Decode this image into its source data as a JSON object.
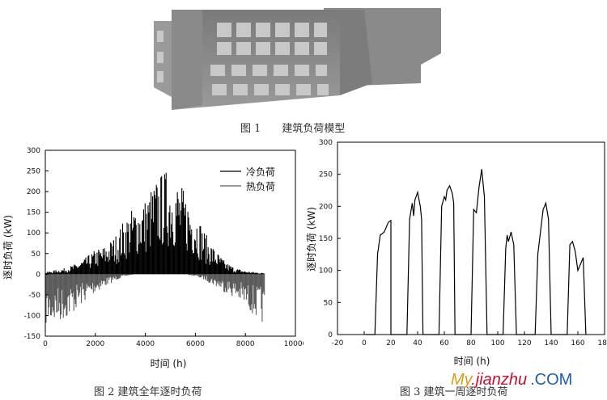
{
  "figure1": {
    "caption": "图 1　　建筑负荷模型"
  },
  "figure2": {
    "caption": "图 2 建筑全年逐时负荷"
  },
  "figure3": {
    "caption": "图 3 建筑一周逐时负荷"
  },
  "watermark": {
    "my": "My",
    "jianzhu": ".jianzhu",
    "com": ".COM"
  },
  "chart_data": [
    {
      "type": "bar",
      "xlabel": "时间 (h)",
      "ylabel": "逐时负荷 (kW)",
      "xlim": [
        0,
        10000
      ],
      "ylim": [
        -150,
        300
      ],
      "xticks": [
        "0",
        "2000",
        "4000",
        "6000",
        "8000",
        "10000"
      ],
      "yticks": [
        "300",
        "250",
        "200",
        "150",
        "100",
        "50",
        "0",
        "-50",
        "-100",
        "-150"
      ],
      "legend_position": "top-right",
      "series": [
        {
          "name": "冷负荷",
          "color": "#000000",
          "x": [
            0,
            400,
            800,
            1200,
            1600,
            2000,
            2400,
            2800,
            3200,
            3600,
            4000,
            4400,
            4800,
            5200,
            5600,
            6000,
            6400,
            6800,
            7200,
            7600,
            8000,
            8400,
            8760
          ],
          "values": [
            5,
            10,
            15,
            25,
            40,
            60,
            70,
            95,
            140,
            170,
            185,
            230,
            255,
            240,
            200,
            160,
            100,
            60,
            30,
            15,
            8,
            5,
            3
          ]
        },
        {
          "name": "热负荷",
          "color": "#5a5a5a",
          "x": [
            0,
            400,
            800,
            1200,
            1600,
            2000,
            2400,
            2800,
            3200,
            3600,
            4000,
            4400,
            4800,
            5200,
            5600,
            6000,
            6400,
            6800,
            7200,
            7600,
            8000,
            8400,
            8760
          ],
          "values": [
            -125,
            -120,
            -110,
            -90,
            -65,
            -45,
            -30,
            -15,
            -5,
            0,
            0,
            0,
            0,
            0,
            0,
            -5,
            -15,
            -30,
            -45,
            -60,
            -80,
            -105,
            -125
          ]
        }
      ]
    },
    {
      "type": "line",
      "xlabel": "时间 (h)",
      "ylabel": "逐时负荷 (kW)",
      "xlim": [
        -20,
        180
      ],
      "ylim": [
        0,
        300
      ],
      "xticks": [
        "-20",
        "0",
        "20",
        "40",
        "60",
        "80",
        "100",
        "120",
        "140",
        "160",
        "180"
      ],
      "yticks": [
        "0",
        "50",
        "100",
        "150",
        "200",
        "250",
        "300"
      ],
      "series": [
        {
          "color": "#000000",
          "x": [
            1,
            8,
            10,
            12,
            15,
            18,
            20,
            20,
            32,
            34,
            36,
            37,
            38,
            40,
            42,
            43,
            44,
            44,
            56,
            58,
            60,
            61,
            62,
            64,
            66,
            67,
            68,
            68,
            80,
            82,
            84,
            86,
            88,
            90,
            92,
            92,
            104,
            106,
            107,
            108,
            110,
            112,
            114,
            116,
            116,
            128,
            130,
            132,
            134,
            136,
            138,
            140,
            140,
            152,
            154,
            156,
            158,
            160,
            162,
            164,
            166
          ],
          "values": [
            0,
            0,
            125,
            155,
            160,
            175,
            178,
            0,
            0,
            180,
            205,
            185,
            210,
            222,
            200,
            180,
            0,
            0,
            0,
            200,
            215,
            210,
            225,
            232,
            220,
            205,
            0,
            0,
            0,
            195,
            190,
            230,
            258,
            215,
            0,
            0,
            0,
            135,
            155,
            145,
            160,
            140,
            0,
            0,
            0,
            0,
            125,
            160,
            195,
            205,
            180,
            0,
            0,
            0,
            140,
            145,
            130,
            100,
            110,
            120,
            0
          ]
        }
      ]
    }
  ]
}
